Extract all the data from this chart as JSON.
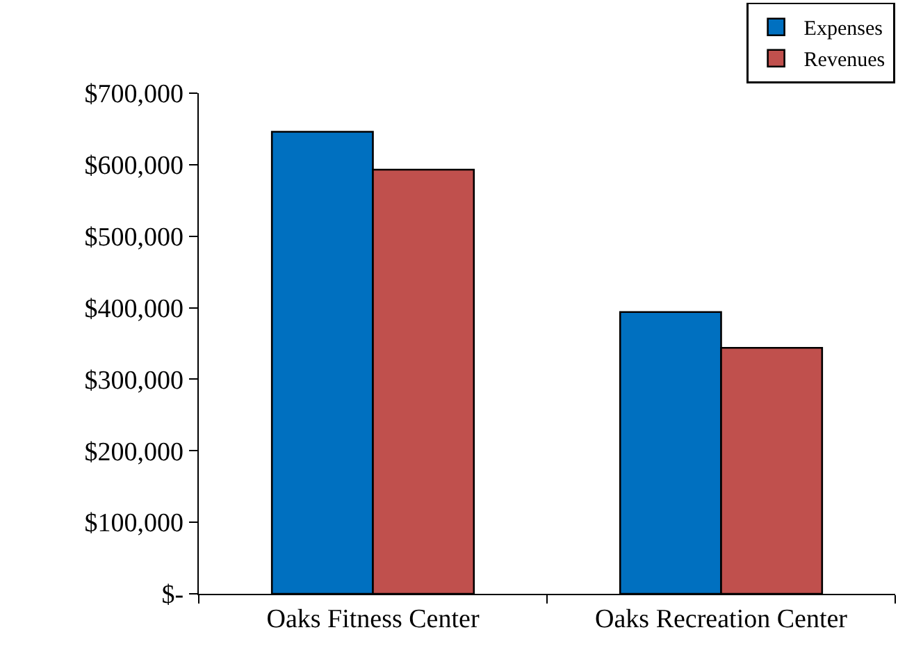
{
  "chart_data": {
    "type": "bar",
    "categories": [
      "Oaks Fitness Center",
      "Oaks Recreation Center"
    ],
    "series": [
      {
        "name": "Expenses",
        "color": "#0070c0",
        "values": [
          646000,
          394000
        ]
      },
      {
        "name": "Revenues",
        "color": "#c0504d",
        "values": [
          593000,
          344000
        ]
      }
    ],
    "ylim": [
      0,
      700000
    ],
    "yticks": [
      {
        "value": 0,
        "label": "$-"
      },
      {
        "value": 100000,
        "label": "$100,000"
      },
      {
        "value": 200000,
        "label": "$200,000"
      },
      {
        "value": 300000,
        "label": "$300,000"
      },
      {
        "value": 400000,
        "label": "$400,000"
      },
      {
        "value": 500000,
        "label": "$500,000"
      },
      {
        "value": 600000,
        "label": "$600,000"
      },
      {
        "value": 700000,
        "label": "$700,000"
      }
    ],
    "grid": false,
    "legend": "top right"
  }
}
